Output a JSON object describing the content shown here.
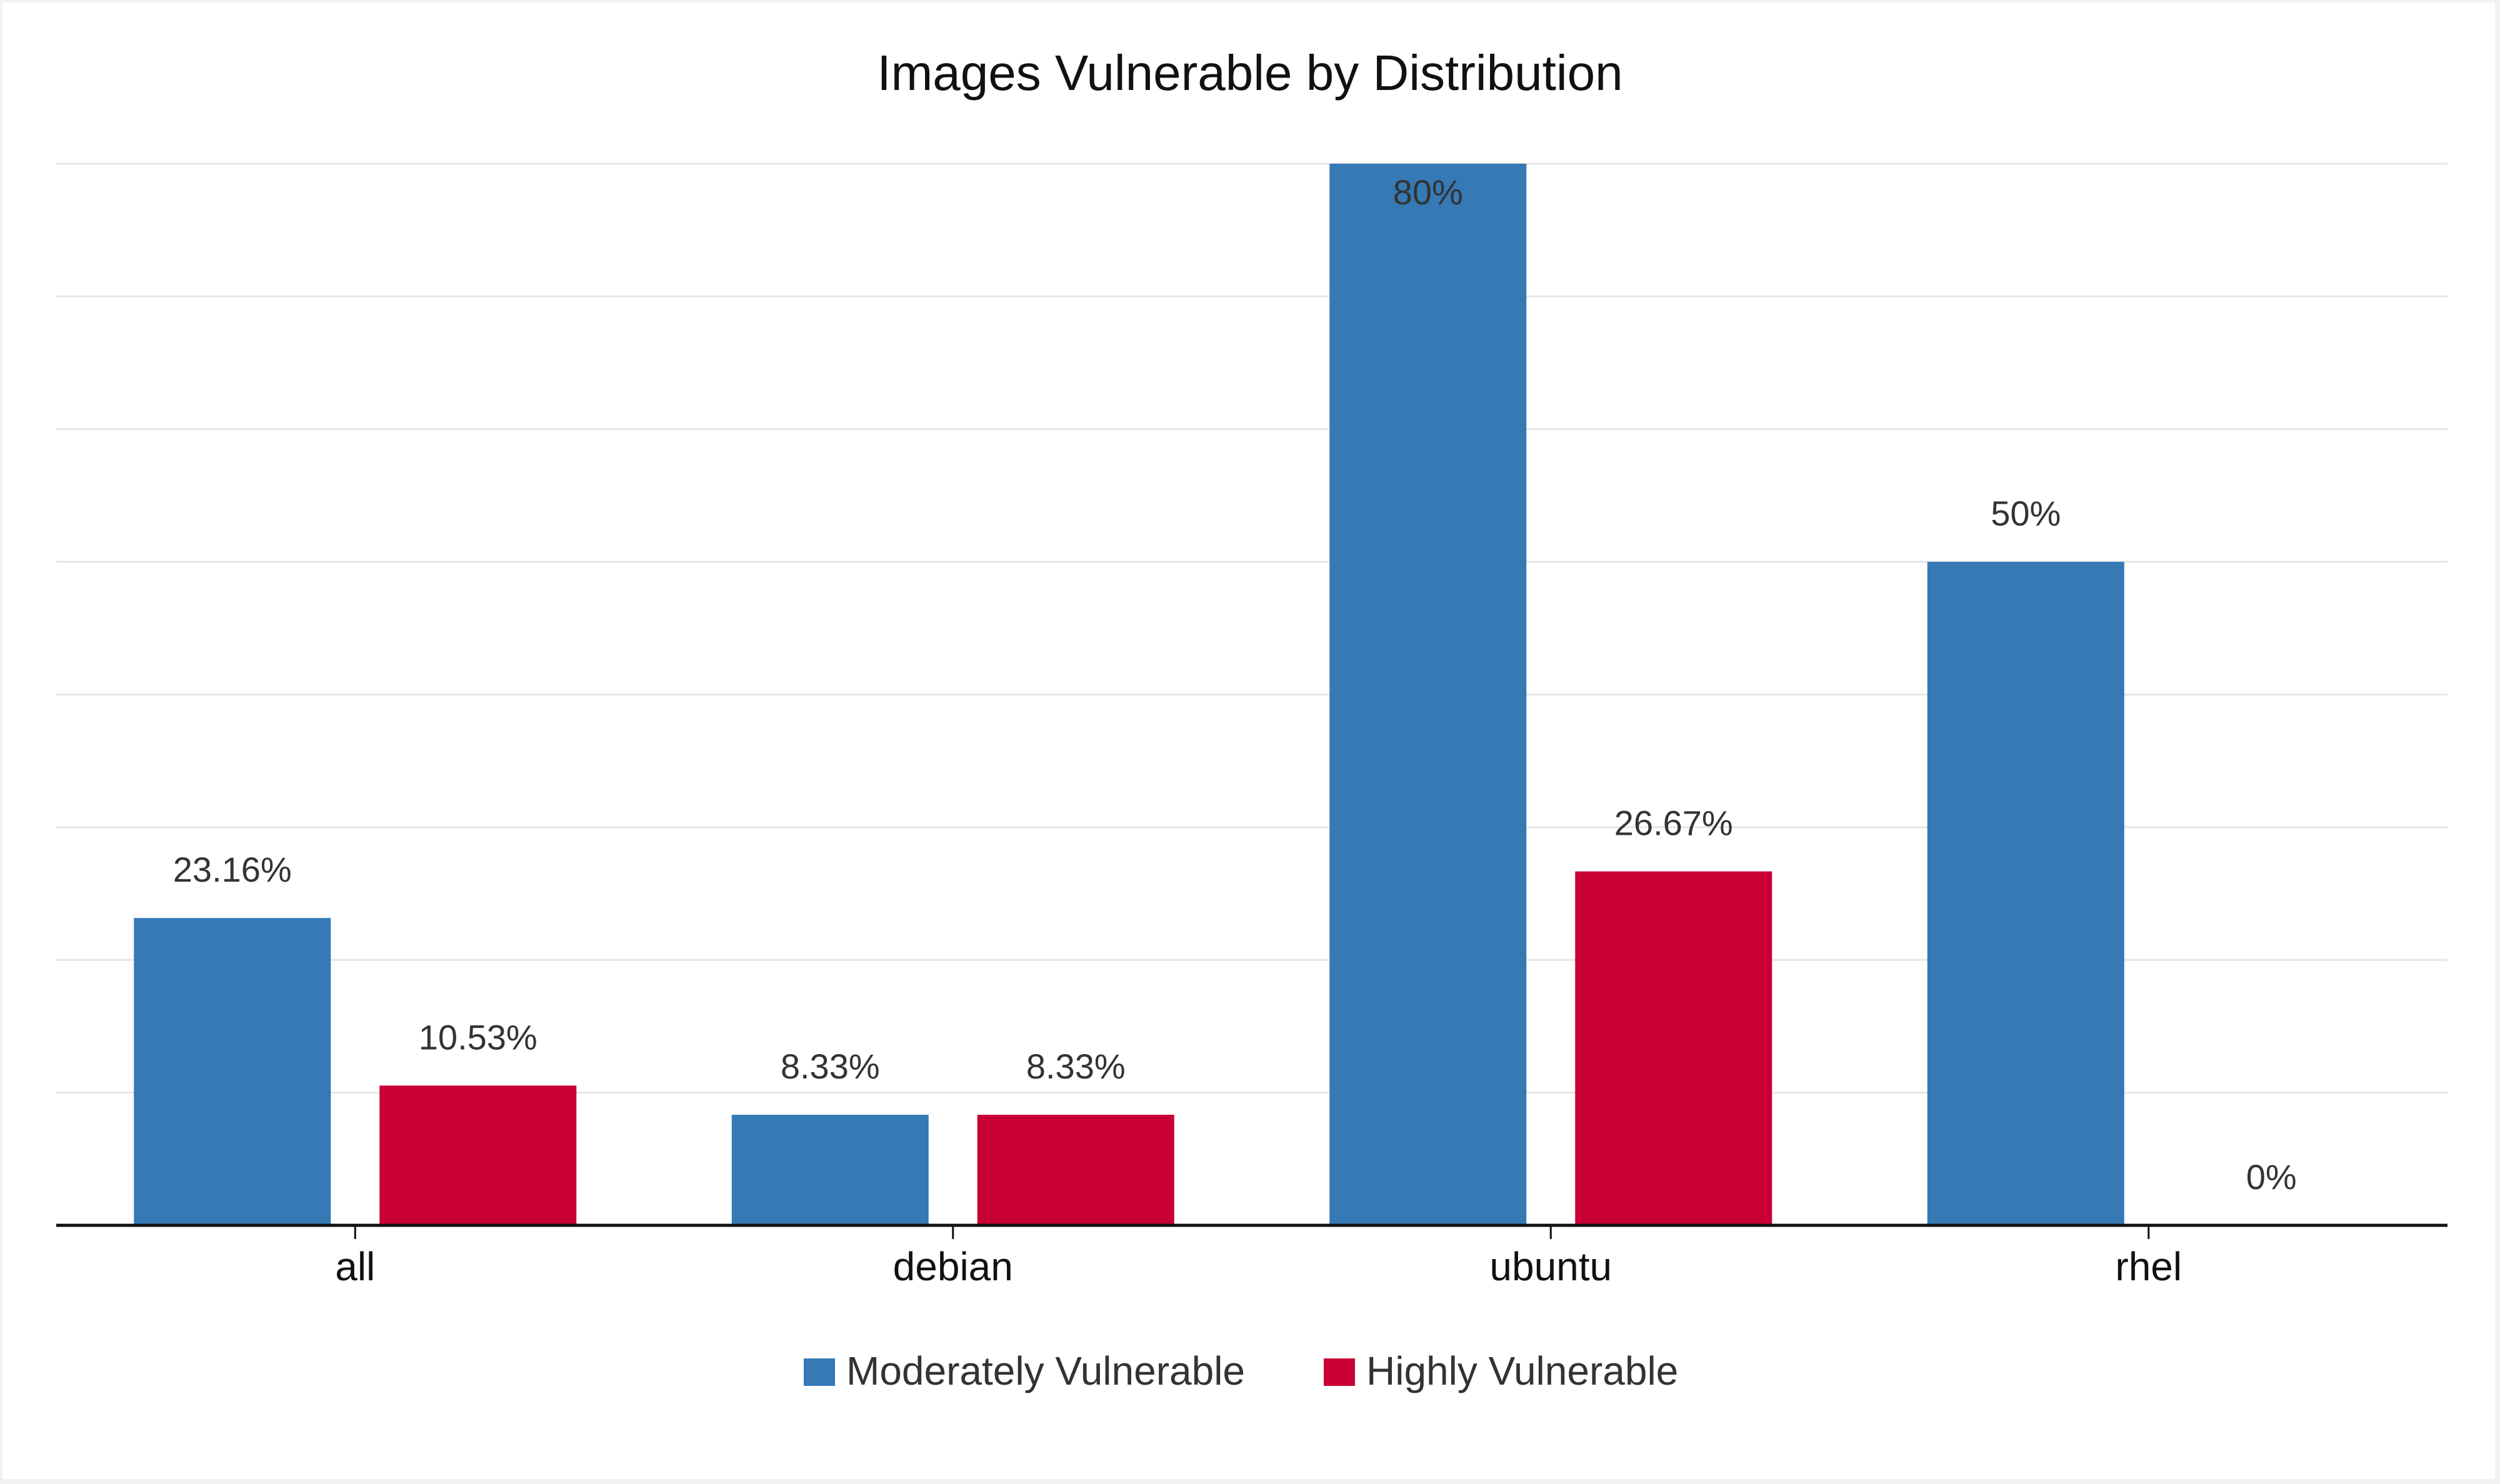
{
  "chart_data": {
    "type": "bar",
    "title": "Images Vulnerable by Distribution",
    "xlabel": "",
    "ylabel": "",
    "categories": [
      "all",
      "debian",
      "ubuntu",
      "rhel"
    ],
    "series": [
      {
        "name": "Moderately Vulnerable",
        "values": [
          23.16,
          8.33,
          80,
          50
        ],
        "labels": [
          "23.16%",
          "8.33%",
          "80%",
          "50%"
        ],
        "color": "#3579b5"
      },
      {
        "name": "Highly Vulnerable",
        "values": [
          10.53,
          8.33,
          26.67,
          0
        ],
        "labels": [
          "10.53%",
          "8.33%",
          "26.67%",
          "0%"
        ],
        "color": "#c90035"
      }
    ],
    "ylim": [
      0,
      80
    ],
    "grid": true,
    "legend": "bottom-center"
  }
}
